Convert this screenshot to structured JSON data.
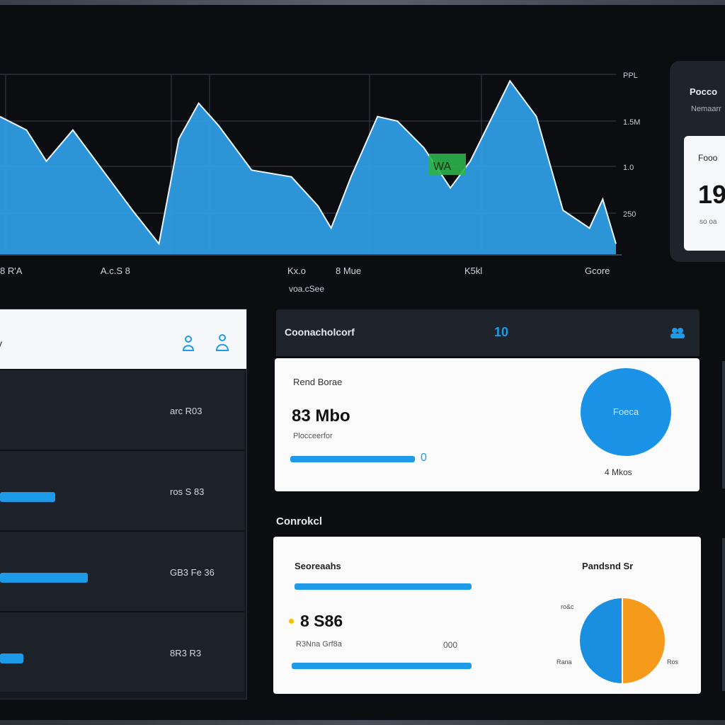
{
  "chart": {
    "y_ticks": [
      "PPL",
      "1.5M",
      "1.0",
      "250"
    ],
    "x_ticks": [
      "8 R'A",
      "A.c.S 8",
      "Kx.o",
      "8 Mue",
      "K5kl",
      "Gcore"
    ],
    "x_caption": "voa.cSee",
    "inset_label": "WA",
    "series": [
      {
        "x": 0,
        "y": 0.62
      },
      {
        "x": 4,
        "y": 0.56
      },
      {
        "x": 7,
        "y": 0.42
      },
      {
        "x": 11,
        "y": 0.56
      },
      {
        "x": 20,
        "y": 0.2
      },
      {
        "x": 24,
        "y": 0.05
      },
      {
        "x": 27,
        "y": 0.52
      },
      {
        "x": 30,
        "y": 0.68
      },
      {
        "x": 33,
        "y": 0.58
      },
      {
        "x": 38,
        "y": 0.38
      },
      {
        "x": 44,
        "y": 0.35
      },
      {
        "x": 48,
        "y": 0.22
      },
      {
        "x": 50,
        "y": 0.12
      },
      {
        "x": 53,
        "y": 0.35
      },
      {
        "x": 57,
        "y": 0.62
      },
      {
        "x": 60,
        "y": 0.6
      },
      {
        "x": 64,
        "y": 0.48
      },
      {
        "x": 68,
        "y": 0.3
      },
      {
        "x": 71,
        "y": 0.42
      },
      {
        "x": 74,
        "y": 0.6
      },
      {
        "x": 77,
        "y": 0.78
      },
      {
        "x": 81,
        "y": 0.62
      },
      {
        "x": 85,
        "y": 0.2
      },
      {
        "x": 89,
        "y": 0.12
      },
      {
        "x": 91,
        "y": 0.25
      },
      {
        "x": 93,
        "y": 0.05
      }
    ]
  },
  "side_card": {
    "title": "Pocco",
    "subtitle": "Nemaarr",
    "inner_label": "Fooo",
    "inner_value": "19",
    "inner_small": "so oa"
  },
  "list_panel": {
    "header_label": "y",
    "rows": [
      {
        "value": "arc R03",
        "bar_fraction": 0.0
      },
      {
        "value": "ros S 83",
        "bar_fraction": 0.36
      },
      {
        "value": "GB3 Fe 36",
        "bar_fraction": 0.57
      },
      {
        "value": "8R3 R3",
        "bar_fraction": 0.15
      }
    ]
  },
  "middle_card": {
    "header_title": "Coonacholcorf",
    "header_mid": "10",
    "label": "Rend Borae",
    "value": "83 Mbo",
    "sub": "Plocceerfor",
    "bar_end": "0",
    "circle_text": "Foeca",
    "circle_under": "4 Mkos"
  },
  "section_heading": "Conrokcl",
  "bottom_card": {
    "title": "Seoreaahs",
    "title_right": "Pandsnd Sr",
    "value": "8 S86",
    "sub": "R3Nna Grf8a",
    "sub_right": "000",
    "pie": {
      "blue": 0.5,
      "orange": 0.5
    },
    "pie_labels": [
      "ro&c",
      "Rana",
      "Ros"
    ]
  },
  "colors": {
    "accent": "#1e9be8",
    "orange": "#f59a1b",
    "background": "#0b0d11",
    "panel": "#1d222a",
    "card": "#fbfbfc"
  }
}
